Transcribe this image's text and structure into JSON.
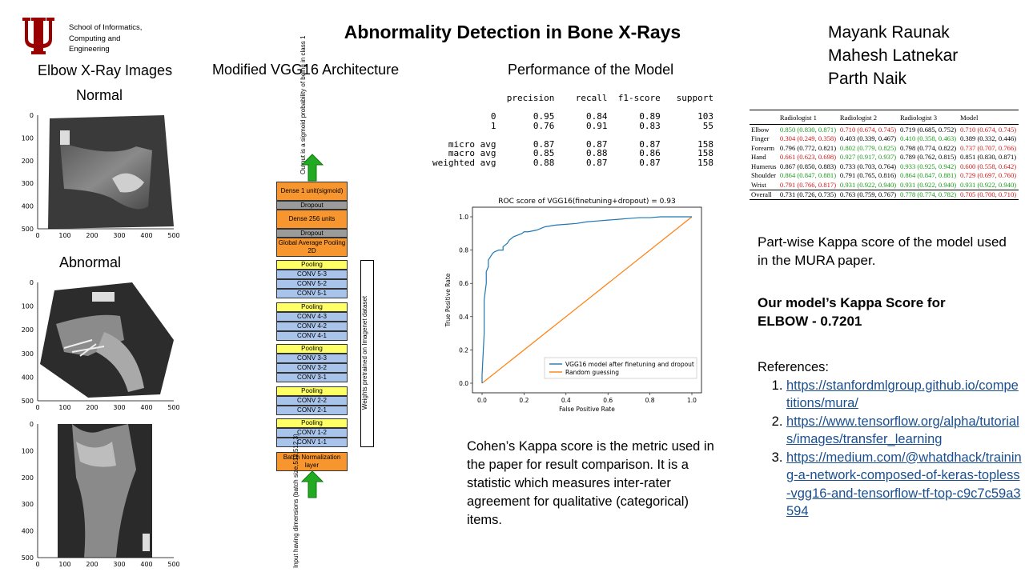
{
  "header": {
    "school": [
      "School of Informatics,",
      "Computing and",
      "Engineering"
    ],
    "title": "Abnormality Detection in Bone X-Rays",
    "authors": [
      "Mayank Raunak",
      "Mahesh Latnekar",
      "Parth Naik"
    ]
  },
  "xrays": {
    "heading": "Elbow X-Ray Images",
    "normal_label": "Normal",
    "abnormal_label": "Abnormal",
    "ticks": [
      "0",
      "100",
      "200",
      "300",
      "400",
      "500"
    ]
  },
  "architecture": {
    "heading": "Modified VGG16 Architecture",
    "output_note": "Output is a sigmoid probability of being in class 1",
    "input_note": "Input having dimensions (batch size,512,512,3)",
    "weights_note": "Weights pretrained on Imagenet dataset",
    "layers": [
      "Dense 1 unit(sigmoid)",
      "Dropout",
      "Dense 256 units",
      "Dropout",
      "Global Average Pooling 2D",
      "Pooling",
      "CONV 5-3",
      "CONV 5-2",
      "CONV 5-1",
      "Pooling",
      "CONV 4-3",
      "CONV 4-2",
      "CONV 4-1",
      "Pooling",
      "CONV 3-3",
      "CONV 3-2",
      "CONV 3-1",
      "Pooling",
      "CONV 2-2",
      "CONV 2-1",
      "Pooling",
      "CONV 1-2",
      "CONV 1-1",
      "Batch Normalization layer"
    ]
  },
  "performance": {
    "heading": "Performance of the Model",
    "report": "              precision    recall  f1-score   support\n\n           0       0.95      0.84      0.89       103\n           1       0.76      0.91      0.83        55\n\n   micro avg       0.87      0.87      0.87       158\n   macro avg       0.85      0.88      0.86       158\nweighted avg       0.88      0.87      0.87       158"
  },
  "chart_data": {
    "type": "line",
    "title": "ROC score of VGG16(finetuning+dropout) = 0.93",
    "xlabel": "False Positive Rate",
    "ylabel": "True Positive Rate",
    "xlim": [
      0,
      1
    ],
    "ylim": [
      0,
      1
    ],
    "xticks": [
      "0.0",
      "0.2",
      "0.4",
      "0.6",
      "0.8",
      "1.0"
    ],
    "yticks": [
      "0.0",
      "0.2",
      "0.4",
      "0.6",
      "0.8",
      "1.0"
    ],
    "legend_position": "bottom-right",
    "series": [
      {
        "name": "VGG16 model after finetuning and dropout",
        "color": "#1f77b4",
        "x": [
          0.0,
          0.0,
          0.01,
          0.01,
          0.02,
          0.02,
          0.03,
          0.03,
          0.04,
          0.05,
          0.06,
          0.08,
          0.1,
          0.1,
          0.12,
          0.13,
          0.15,
          0.17,
          0.19,
          0.2,
          0.22,
          0.26,
          0.28,
          0.3,
          0.35,
          0.4,
          0.45,
          0.5,
          0.55,
          0.6,
          0.65,
          0.7,
          0.75,
          0.8,
          0.85,
          0.9,
          0.95,
          1.0
        ],
        "y": [
          0.0,
          0.05,
          0.3,
          0.5,
          0.6,
          0.67,
          0.7,
          0.74,
          0.76,
          0.78,
          0.79,
          0.8,
          0.8,
          0.82,
          0.84,
          0.86,
          0.88,
          0.89,
          0.9,
          0.91,
          0.91,
          0.92,
          0.93,
          0.94,
          0.95,
          0.955,
          0.96,
          0.97,
          0.975,
          0.98,
          0.985,
          0.99,
          0.995,
          0.995,
          1.0,
          1.0,
          1.0,
          1.0
        ]
      },
      {
        "name": "Random guessing",
        "color": "#ff7f0e",
        "x": [
          0,
          1
        ],
        "y": [
          0,
          1
        ]
      }
    ]
  },
  "cohen_text": "Cohen’s Kappa score is the metric used in the paper for result comparison. It is a statistic which measures inter-rater agreement for qualitative (categorical) items.",
  "kappa_table": {
    "headers": [
      "",
      "Radiologist 1",
      "Radiologist 2",
      "Radiologist 3",
      "Model"
    ],
    "rows": [
      [
        "Elbow",
        "0.850 (0.830, 0.871)",
        "0.710 (0.674, 0.745)",
        "0.719 (0.685, 0.752)",
        "0.710 (0.674, 0.745)"
      ],
      [
        "Finger",
        "0.304 (0.249, 0.358)",
        "0.403 (0.339, 0.467)",
        "0.410 (0.358, 0.463)",
        "0.389 (0.332, 0.446)"
      ],
      [
        "Forearm",
        "0.796 (0.772, 0.821)",
        "0.802 (0.779, 0.825)",
        "0.798 (0.774, 0.822)",
        "0.737 (0.707, 0.766)"
      ],
      [
        "Hand",
        "0.661 (0.623, 0.698)",
        "0.927 (0.917, 0.937)",
        "0.789 (0.762, 0.815)",
        "0.851 (0.830, 0.871)"
      ],
      [
        "Humerus",
        "0.867 (0.850, 0.883)",
        "0.733 (0.703, 0.764)",
        "0.933 (0.925, 0.942)",
        "0.600 (0.558, 0.642)"
      ],
      [
        "Shoulder",
        "0.864 (0.847, 0.881)",
        "0.791 (0.765, 0.816)",
        "0.864 (0.847, 0.881)",
        "0.729 (0.697, 0.760)"
      ],
      [
        "Wrist",
        "0.791 (0.766, 0.817)",
        "0.931 (0.922, 0.940)",
        "0.931 (0.922, 0.940)",
        "0.931 (0.922, 0.940)"
      ]
    ],
    "overall": [
      "Overall",
      "0.731 (0.726, 0.735)",
      "0.763 (0.759, 0.767)",
      "0.778 (0.774, 0.782)",
      "0.705 (0.700, 0.710)"
    ],
    "colors": {
      "rows": [
        [
          "",
          "g",
          "r",
          "",
          "r"
        ],
        [
          "",
          "r",
          "",
          "g",
          ""
        ],
        [
          "",
          "",
          "g",
          "",
          "r"
        ],
        [
          "",
          "r",
          "g",
          "",
          ""
        ],
        [
          "",
          "",
          "",
          "g",
          "r"
        ],
        [
          "",
          "g",
          "",
          "g",
          "r"
        ],
        [
          "",
          "r",
          "g",
          "g",
          "g"
        ]
      ],
      "overall": [
        "",
        "",
        "",
        "g",
        "r"
      ],
      "green": "#1a9a1a",
      "red": "#d01818"
    }
  },
  "kappa_caption": "Part-wise Kappa score of the model used in the MURA paper.",
  "our_kappa": "Our model’s Kappa Score for ELBOW - 0.7201",
  "references": {
    "heading": "References:",
    "items": [
      "https://stanfordmlgroup.github.io/competitions/mura/",
      "https://www.tensorflow.org/alpha/tutorials/images/transfer_learning",
      "https://medium.com/@whatdhack/training-a-network-composed-of-keras-topless-vgg16-and-tensorflow-tf-top-c9c7c59a3594"
    ]
  }
}
